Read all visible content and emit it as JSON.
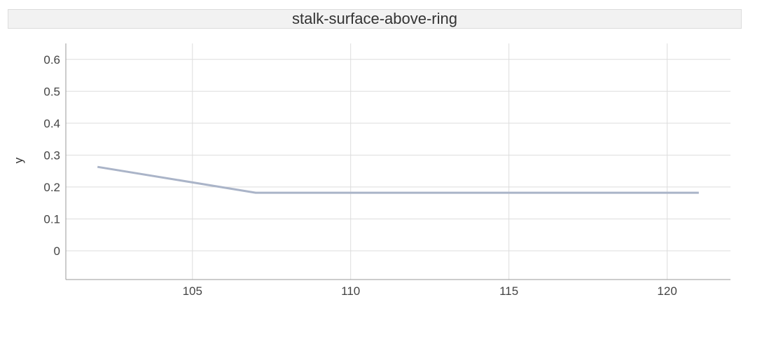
{
  "chart_data": {
    "type": "line",
    "title": "stalk-surface-above-ring",
    "xlabel": "",
    "ylabel": "y",
    "xlim": [
      101,
      122
    ],
    "ylim": [
      -0.09,
      0.65
    ],
    "x_ticks": [
      105,
      110,
      115,
      120
    ],
    "y_ticks": [
      0,
      0.1,
      0.2,
      0.3,
      0.4,
      0.5,
      0.6
    ],
    "grid": true,
    "colors": {
      "line": "#aab4c8",
      "grid": "#dddddd",
      "axis": "#999999"
    },
    "series": [
      {
        "x": [
          102,
          107,
          108,
          121
        ],
        "values": [
          0.263,
          0.182,
          0.182,
          0.182
        ]
      }
    ]
  }
}
